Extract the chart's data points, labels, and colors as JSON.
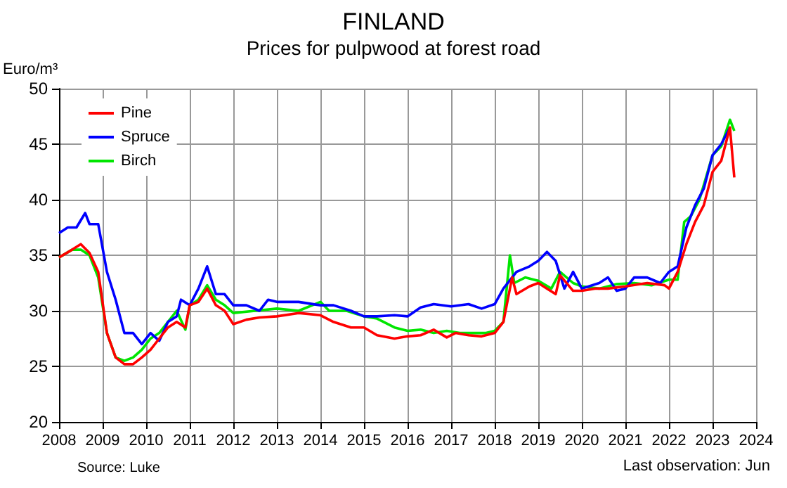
{
  "chart_data": {
    "type": "line",
    "title": "FINLAND",
    "subtitle": "Prices for pulpwood at forest road",
    "ylabel": "Euro/m³",
    "annotations": [
      "Source: Luke",
      "Last observation: Jun"
    ],
    "xlim": [
      2008,
      2024
    ],
    "xticks": [
      2008,
      2009,
      2010,
      2011,
      2012,
      2013,
      2014,
      2015,
      2016,
      2017,
      2018,
      2019,
      2020,
      2021,
      2022,
      2023,
      2024
    ],
    "ylim": [
      20,
      50
    ],
    "yticks": [
      20,
      25,
      30,
      35,
      40,
      45,
      50
    ],
    "grid": true,
    "legend": "top left",
    "marker": "none",
    "line_style": "solid",
    "series": [
      {
        "name": "Pine",
        "color": "#ff0000",
        "x": [
          2008.0,
          2008.3,
          2008.5,
          2008.7,
          2008.9,
          2009.1,
          2009.3,
          2009.5,
          2009.7,
          2009.9,
          2010.1,
          2010.3,
          2010.5,
          2010.7,
          2010.9,
          2011.0,
          2011.2,
          2011.4,
          2011.6,
          2011.8,
          2012.0,
          2012.3,
          2012.6,
          2013.0,
          2013.5,
          2014.0,
          2014.3,
          2014.7,
          2015.0,
          2015.3,
          2015.7,
          2016.0,
          2016.3,
          2016.6,
          2016.9,
          2017.1,
          2017.4,
          2017.7,
          2018.0,
          2018.2,
          2018.4,
          2018.5,
          2018.8,
          2019.0,
          2019.2,
          2019.4,
          2019.5,
          2019.8,
          2020.0,
          2020.3,
          2020.6,
          2021.0,
          2021.5,
          2021.9,
          2022.0,
          2022.2,
          2022.4,
          2022.6,
          2022.8,
          2023.0,
          2023.2,
          2023.4,
          2023.5
        ],
        "values": [
          34.8,
          35.5,
          36.0,
          35.2,
          33.5,
          28,
          25.8,
          25.2,
          25.2,
          25.8,
          26.5,
          27.5,
          28.5,
          29.0,
          28.5,
          30.5,
          30.8,
          32.0,
          30.5,
          30.0,
          28.8,
          29.2,
          29.4,
          29.5,
          29.8,
          29.6,
          29.0,
          28.5,
          28.5,
          27.8,
          27.5,
          27.7,
          27.8,
          28.3,
          27.6,
          28.0,
          27.8,
          27.7,
          28.0,
          29.0,
          33.0,
          31.5,
          32.2,
          32.5,
          32.0,
          31.5,
          33.2,
          31.8,
          31.8,
          32.0,
          32.0,
          32.2,
          32.5,
          32.3,
          32.0,
          33.5,
          36.0,
          38.0,
          39.5,
          42.5,
          43.5,
          46.5,
          42.0
        ]
      },
      {
        "name": "Spruce",
        "color": "#0000ff",
        "x": [
          2008.0,
          2008.2,
          2008.4,
          2008.6,
          2008.7,
          2008.9,
          2009.1,
          2009.3,
          2009.5,
          2009.7,
          2009.9,
          2010.1,
          2010.3,
          2010.5,
          2010.7,
          2010.8,
          2011.0,
          2011.2,
          2011.4,
          2011.6,
          2011.8,
          2012.0,
          2012.3,
          2012.6,
          2012.8,
          2013.0,
          2013.5,
          2014.0,
          2014.3,
          2014.7,
          2015.0,
          2015.3,
          2015.7,
          2016.0,
          2016.3,
          2016.6,
          2017.0,
          2017.4,
          2017.7,
          2018.0,
          2018.2,
          2018.5,
          2018.8,
          2019.0,
          2019.2,
          2019.4,
          2019.6,
          2019.8,
          2020.0,
          2020.4,
          2020.6,
          2020.8,
          2021.0,
          2021.2,
          2021.5,
          2021.8,
          2022.0,
          2022.2,
          2022.4,
          2022.6,
          2022.8,
          2023.0,
          2023.2,
          2023.4
        ],
        "values": [
          37.0,
          37.5,
          37.5,
          38.8,
          37.8,
          37.8,
          33.5,
          31.0,
          28.0,
          28.0,
          27.0,
          28.0,
          27.3,
          29.0,
          29.5,
          31.0,
          30.5,
          32.0,
          34.0,
          31.5,
          31.5,
          30.5,
          30.5,
          30.0,
          31.0,
          30.8,
          30.8,
          30.5,
          30.5,
          30.0,
          29.5,
          29.5,
          29.6,
          29.5,
          30.3,
          30.6,
          30.4,
          30.6,
          30.2,
          30.6,
          32.0,
          33.5,
          34.0,
          34.5,
          35.3,
          34.5,
          32.0,
          33.5,
          32.0,
          32.5,
          33.0,
          31.8,
          32.0,
          33.0,
          33.0,
          32.5,
          33.5,
          34.0,
          37.5,
          39.5,
          41.0,
          44.0,
          45.0,
          46.5
        ]
      },
      {
        "name": "Birch",
        "color": "#00e600",
        "x": [
          2008.0,
          2008.3,
          2008.5,
          2008.7,
          2008.9,
          2009.1,
          2009.3,
          2009.5,
          2009.7,
          2009.9,
          2010.1,
          2010.3,
          2010.5,
          2010.7,
          2010.9,
          2011.0,
          2011.2,
          2011.4,
          2011.6,
          2011.8,
          2012.0,
          2012.5,
          2013.0,
          2013.5,
          2014.0,
          2014.2,
          2014.6,
          2015.0,
          2015.3,
          2015.7,
          2016.0,
          2016.3,
          2016.6,
          2016.9,
          2017.2,
          2017.5,
          2017.8,
          2018.0,
          2018.2,
          2018.35,
          2018.45,
          2018.7,
          2019.0,
          2019.3,
          2019.5,
          2019.8,
          2020.0,
          2020.4,
          2020.8,
          2021.2,
          2021.6,
          2022.0,
          2022.2,
          2022.35,
          2022.5,
          2022.7,
          2023.0,
          2023.2,
          2023.4,
          2023.5
        ],
        "values": [
          34.8,
          35.5,
          35.5,
          35.0,
          33.0,
          28.0,
          25.8,
          25.5,
          25.8,
          26.5,
          27.5,
          28.0,
          29.0,
          30.0,
          28.3,
          30.5,
          31.0,
          32.3,
          31.0,
          30.5,
          29.8,
          30.0,
          30.2,
          30.0,
          30.8,
          30.0,
          30.0,
          29.5,
          29.3,
          28.5,
          28.2,
          28.3,
          28.0,
          28.2,
          28.0,
          28.0,
          28.0,
          28.2,
          29.0,
          35.0,
          32.5,
          33.0,
          32.7,
          32.0,
          33.5,
          32.5,
          32.2,
          32.0,
          32.4,
          32.5,
          32.3,
          32.8,
          32.8,
          38.0,
          38.5,
          40.0,
          44.0,
          44.8,
          47.2,
          46.2
        ]
      }
    ]
  }
}
